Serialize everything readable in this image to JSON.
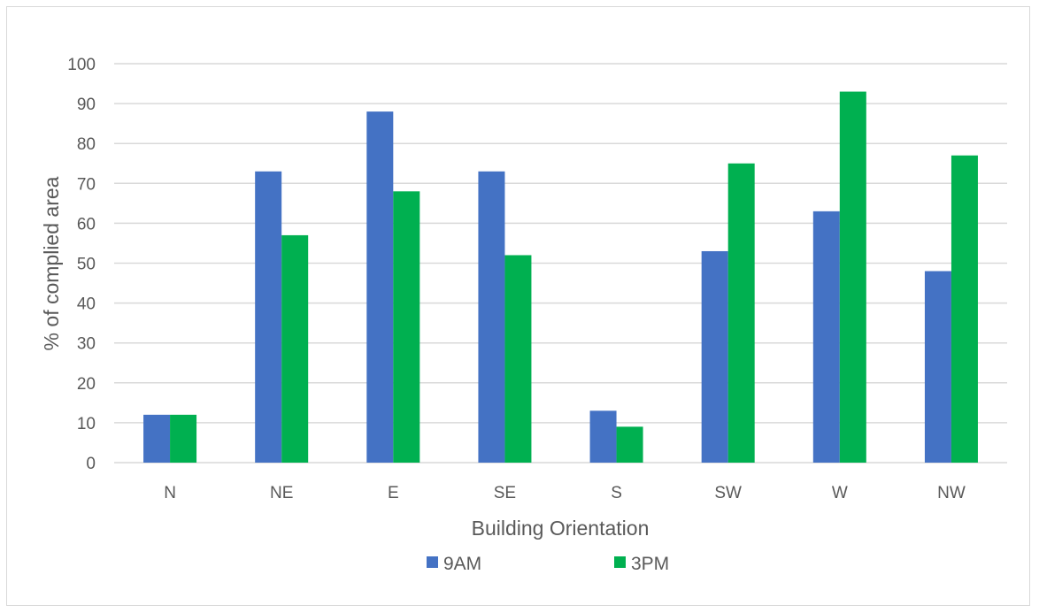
{
  "chart_data": {
    "type": "bar",
    "title": "",
    "xlabel": "Building Orientation",
    "ylabel": "% of complied area",
    "ylim": [
      0,
      100
    ],
    "yticks": [
      0,
      10,
      20,
      30,
      40,
      50,
      60,
      70,
      80,
      90,
      100
    ],
    "grid": true,
    "legend_position": "bottom",
    "categories": [
      "N",
      "NE",
      "E",
      "SE",
      "S",
      "SW",
      "W",
      "NW"
    ],
    "series": [
      {
        "name": "9AM",
        "color": "#4472c4",
        "values": [
          12,
          73,
          88,
          73,
          13,
          53,
          63,
          48
        ]
      },
      {
        "name": "3PM",
        "color": "#00b050",
        "values": [
          12,
          57,
          68,
          52,
          9,
          75,
          93,
          77
        ]
      }
    ]
  }
}
